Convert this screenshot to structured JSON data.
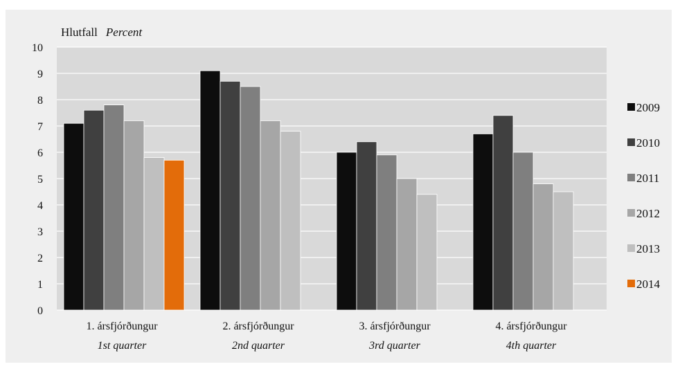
{
  "chart_data": {
    "type": "bar",
    "ylabel": "Hlutfall",
    "ylabel_en": "Percent",
    "ylim": [
      0,
      10
    ],
    "yticks": [
      0,
      1,
      2,
      3,
      4,
      5,
      6,
      7,
      8,
      9,
      10
    ],
    "grid": true,
    "legend_position": "right",
    "categories": [
      {
        "label": "1. ársfjórðungur",
        "label_en": "1st quarter"
      },
      {
        "label": "2. ársfjórðungur",
        "label_en": "2nd quarter"
      },
      {
        "label": "3. ársfjórðungur",
        "label_en": "3rd quarter"
      },
      {
        "label": "4. ársfjórðungur",
        "label_en": "4th quarter"
      }
    ],
    "series": [
      {
        "name": "2009",
        "color": "#0d0d0d",
        "values": [
          7.1,
          9.1,
          6.0,
          6.7
        ]
      },
      {
        "name": "2010",
        "color": "#404040",
        "values": [
          7.6,
          8.7,
          6.4,
          7.4
        ]
      },
      {
        "name": "2011",
        "color": "#7f7f7f",
        "values": [
          7.8,
          8.5,
          5.9,
          6.0
        ]
      },
      {
        "name": "2012",
        "color": "#a6a6a6",
        "values": [
          7.2,
          7.2,
          5.0,
          4.8
        ]
      },
      {
        "name": "2013",
        "color": "#bfbfbf",
        "values": [
          5.8,
          6.8,
          4.4,
          4.5
        ]
      },
      {
        "name": "2014",
        "color": "#e36c0a",
        "values": [
          5.7,
          null,
          null,
          null
        ]
      }
    ]
  }
}
